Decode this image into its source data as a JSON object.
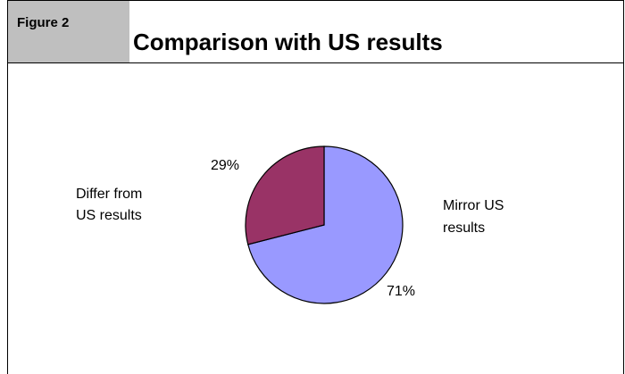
{
  "figure_label": "Figure 2",
  "chart_data": {
    "type": "pie",
    "title": "Comparison with US results",
    "slices": [
      {
        "name": "Mirror US results",
        "name_lines": [
          "Mirror US",
          "results"
        ],
        "value": 71,
        "value_label": "71%",
        "color": "#9999ff"
      },
      {
        "name": "Differ from US results",
        "name_lines": [
          "Differ from",
          "US results"
        ],
        "value": 29,
        "value_label": "29%",
        "color": "#993366"
      }
    ],
    "legend": "none"
  }
}
